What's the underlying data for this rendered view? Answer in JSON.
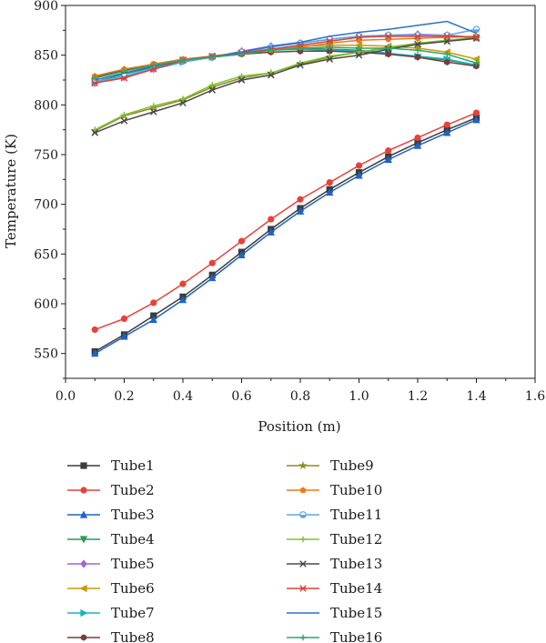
{
  "chart_data": {
    "type": "line",
    "title": "",
    "xlabel": "Position (m)",
    "ylabel": "Temperature (K)",
    "xlim": [
      0.0,
      1.6
    ],
    "ylim": [
      525,
      900
    ],
    "x_ticks": [
      "0.0",
      "0.2",
      "0.4",
      "0.6",
      "0.8",
      "1.0",
      "1.2",
      "1.4",
      "1.6"
    ],
    "y_ticks": [
      "550",
      "600",
      "650",
      "700",
      "750",
      "800",
      "850",
      "900"
    ],
    "grid": false,
    "legend_position": "bottom, two columns",
    "x": [
      0.1,
      0.2,
      0.3,
      0.4,
      0.5,
      0.6,
      0.7,
      0.8,
      0.9,
      1.0,
      1.1,
      1.2,
      1.3,
      1.4
    ],
    "series": [
      {
        "name": "Tube1",
        "color": "#3c3c3c",
        "marker": "square",
        "values": [
          552,
          569,
          588,
          607,
          629,
          652,
          675,
          696,
          715,
          732,
          748,
          762,
          775,
          787
        ]
      },
      {
        "name": "Tube2",
        "color": "#e8403a",
        "marker": "circle",
        "values": [
          574,
          585,
          601,
          620,
          641,
          663,
          685,
          705,
          722,
          739,
          754,
          767,
          780,
          792
        ]
      },
      {
        "name": "Tube3",
        "color": "#1f63c6",
        "marker": "triangle-up",
        "values": [
          550,
          567,
          584,
          604,
          626,
          649,
          672,
          693,
          712,
          729,
          745,
          759,
          772,
          785
        ]
      },
      {
        "name": "Tube4",
        "color": "#2a9a5a",
        "marker": "triangle-down",
        "values": [
          823,
          831,
          838,
          845,
          848,
          852,
          855,
          857,
          856,
          855,
          852,
          848,
          845,
          840
        ]
      },
      {
        "name": "Tube5",
        "color": "#a064d8",
        "marker": "diamond",
        "values": [
          822,
          828,
          836,
          844,
          848,
          854,
          859,
          862,
          866,
          869,
          870,
          871,
          870,
          868
        ]
      },
      {
        "name": "Tube6",
        "color": "#c89a0a",
        "marker": "triangle-left",
        "values": [
          827,
          834,
          840,
          845,
          849,
          853,
          856,
          859,
          860,
          860,
          859,
          857,
          853,
          846
        ]
      },
      {
        "name": "Tube7",
        "color": "#18b4c0",
        "marker": "triangle-right",
        "values": [
          822,
          829,
          836,
          843,
          848,
          852,
          855,
          856,
          855,
          854,
          852,
          849,
          846,
          840
        ]
      },
      {
        "name": "Tube8",
        "color": "#7a3b3b",
        "marker": "hexagon",
        "values": [
          828,
          835,
          841,
          845,
          848,
          851,
          853,
          854,
          854,
          853,
          851,
          848,
          843,
          839
        ]
      },
      {
        "name": "Tube9",
        "color": "#8c8c1c",
        "marker": "star",
        "values": [
          774,
          789,
          797,
          805,
          818,
          827,
          832,
          841,
          848,
          853,
          857,
          861,
          864,
          867
        ]
      },
      {
        "name": "Tube10",
        "color": "#ec7a14",
        "marker": "pentagon",
        "values": [
          829,
          836,
          841,
          846,
          849,
          852,
          855,
          858,
          862,
          865,
          866,
          867,
          868,
          869
        ]
      },
      {
        "name": "Tube11",
        "color": "#5ca8e0",
        "marker": "circle-half",
        "values": [
          823,
          829,
          837,
          844,
          848,
          853,
          858,
          862,
          866,
          869,
          870,
          870,
          870,
          876
        ]
      },
      {
        "name": "Tube12",
        "color": "#7ec234",
        "marker": "plus",
        "values": [
          775,
          790,
          799,
          806,
          820,
          829,
          832,
          842,
          849,
          853,
          858,
          862,
          865,
          868
        ]
      },
      {
        "name": "Tube13",
        "color": "#4a4a4a",
        "marker": "x",
        "values": [
          772,
          784,
          793,
          802,
          815,
          825,
          830,
          840,
          846,
          850,
          856,
          861,
          864,
          867
        ]
      },
      {
        "name": "Tube14",
        "color": "#d8423a",
        "marker": "x-square",
        "values": [
          822,
          827,
          836,
          845,
          849,
          852,
          856,
          860,
          864,
          868,
          869,
          869,
          869,
          868
        ]
      },
      {
        "name": "Tube15",
        "color": "#2a6fd0",
        "marker": "none",
        "values": [
          825,
          832,
          839,
          845,
          848,
          853,
          859,
          863,
          869,
          873,
          876,
          880,
          884,
          872
        ]
      },
      {
        "name": "Tube16",
        "color": "#2aa86a",
        "marker": "plus",
        "values": [
          827,
          834,
          840,
          845,
          848,
          851,
          855,
          857,
          858,
          857,
          857,
          855,
          851,
          842
        ]
      }
    ]
  }
}
